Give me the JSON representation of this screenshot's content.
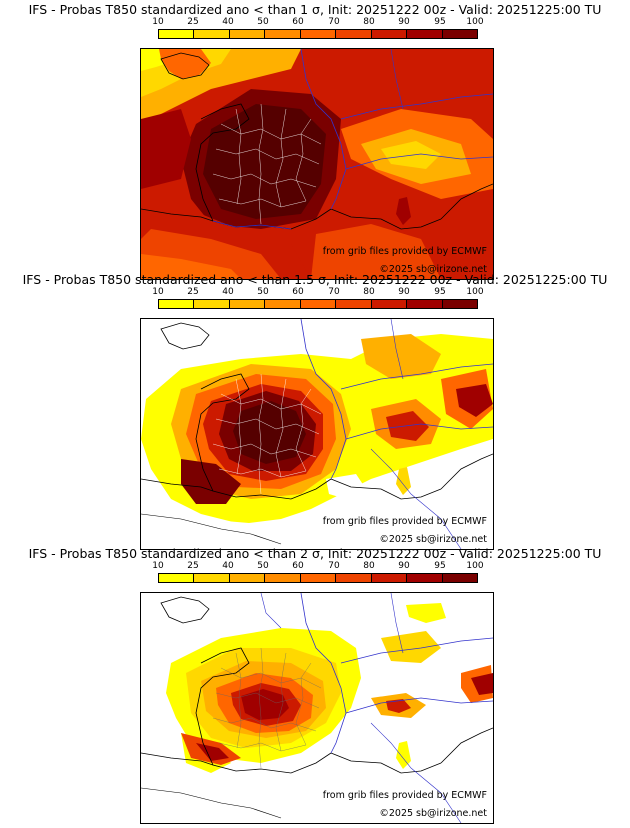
{
  "colors": {
    "c10": "#ffff00",
    "c25": "#ffd800",
    "c40": "#ffb000",
    "c50": "#ff8c00",
    "c60": "#ff6600",
    "c70": "#ee4400",
    "c80": "#cc1a00",
    "c90": "#a00000",
    "c95": "#7a0000",
    "c100": "#550000",
    "coast": "#000000",
    "borders": "#3333cc",
    "regions": "#ffffff"
  },
  "scale": {
    "labels": [
      "10",
      "25",
      "40",
      "50",
      "60",
      "70",
      "80",
      "90",
      "95",
      "100"
    ],
    "segment_colors": [
      "#ffff00",
      "#ffd800",
      "#ffb000",
      "#ff8c00",
      "#ff6600",
      "#ee4400",
      "#cc1a00",
      "#a00000",
      "#7a0000"
    ]
  },
  "panels": [
    {
      "title": "IFS - Probas T850  standardized ano < than 1 σ, Init: 20251222 00z - Valid: 20251225:00 TU",
      "credit_source": "from grib files provided by ECMWF",
      "credit_copyright": "©2025 sb@irizone.net",
      "intensity": "high"
    },
    {
      "title": "IFS - Probas T850  standardized ano < than 1.5 σ, Init: 20251222 00z - Valid: 20251225:00 TU",
      "credit_source": "from grib files provided by ECMWF",
      "credit_copyright": "©2025 sb@irizone.net",
      "intensity": "medium"
    },
    {
      "title": "IFS - Probas T850  standardized ano < than 2 σ, Init: 20251222 00z - Valid: 20251225:00 TU",
      "credit_source": "from grib files provided by ECMWF",
      "credit_copyright": "©2025 sb@irizone.net",
      "intensity": "low"
    }
  ]
}
